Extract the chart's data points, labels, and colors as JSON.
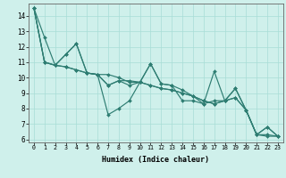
{
  "xlabel": "Humidex (Indice chaleur)",
  "bg_color": "#cff0eb",
  "line_color": "#2e7d72",
  "grid_color": "#a8ddd6",
  "xlim": [
    -0.5,
    23.5
  ],
  "ylim": [
    5.8,
    14.8
  ],
  "yticks": [
    6,
    7,
    8,
    9,
    10,
    11,
    12,
    13,
    14
  ],
  "series": [
    [
      14.5,
      12.6,
      10.8,
      11.5,
      12.2,
      10.3,
      10.2,
      10.2,
      10.0,
      9.7,
      9.7,
      9.5,
      9.3,
      9.2,
      9.0,
      8.8,
      8.5,
      8.3,
      8.5,
      8.7,
      7.9,
      6.3,
      6.8,
      6.2
    ],
    [
      14.5,
      11.0,
      10.8,
      10.7,
      10.5,
      10.3,
      10.2,
      9.5,
      9.8,
      9.8,
      9.7,
      10.9,
      9.6,
      9.5,
      9.2,
      8.8,
      8.3,
      10.4,
      8.5,
      9.3,
      7.9,
      6.3,
      6.2,
      6.2
    ],
    [
      14.5,
      11.0,
      10.8,
      11.5,
      12.2,
      10.3,
      10.2,
      7.6,
      8.0,
      8.5,
      9.7,
      10.9,
      9.6,
      9.5,
      8.5,
      8.5,
      8.3,
      8.5,
      8.5,
      9.3,
      7.9,
      6.3,
      6.3,
      6.2
    ],
    [
      14.5,
      11.0,
      10.8,
      10.7,
      10.5,
      10.3,
      10.2,
      9.5,
      9.8,
      9.5,
      9.7,
      9.5,
      9.3,
      9.2,
      9.0,
      8.8,
      8.5,
      8.3,
      8.5,
      8.7,
      7.9,
      6.3,
      6.8,
      6.2
    ]
  ]
}
